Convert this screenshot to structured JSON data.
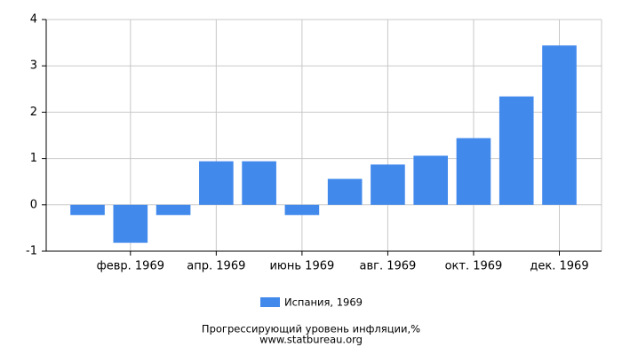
{
  "chart_data": {
    "type": "bar",
    "categories": [
      null,
      "февр. 1969",
      null,
      "апр. 1969",
      null,
      "июнь 1969",
      null,
      "авг. 1969",
      null,
      "окт. 1969",
      null,
      "дек. 1969"
    ],
    "series": [
      {
        "name": "Испания, 1969",
        "color": "#4289ec",
        "values": [
          -0.22,
          -0.82,
          -0.22,
          0.94,
          0.94,
          -0.22,
          0.56,
          0.87,
          1.06,
          1.44,
          2.34,
          3.44
        ]
      }
    ],
    "ylim": [
      -1,
      4
    ],
    "yticks": [
      -1,
      0,
      1,
      2,
      3,
      4
    ],
    "grid": true,
    "title": "Прогрессирующий уровень инфляции,%",
    "source": "www.statbureau.org"
  }
}
